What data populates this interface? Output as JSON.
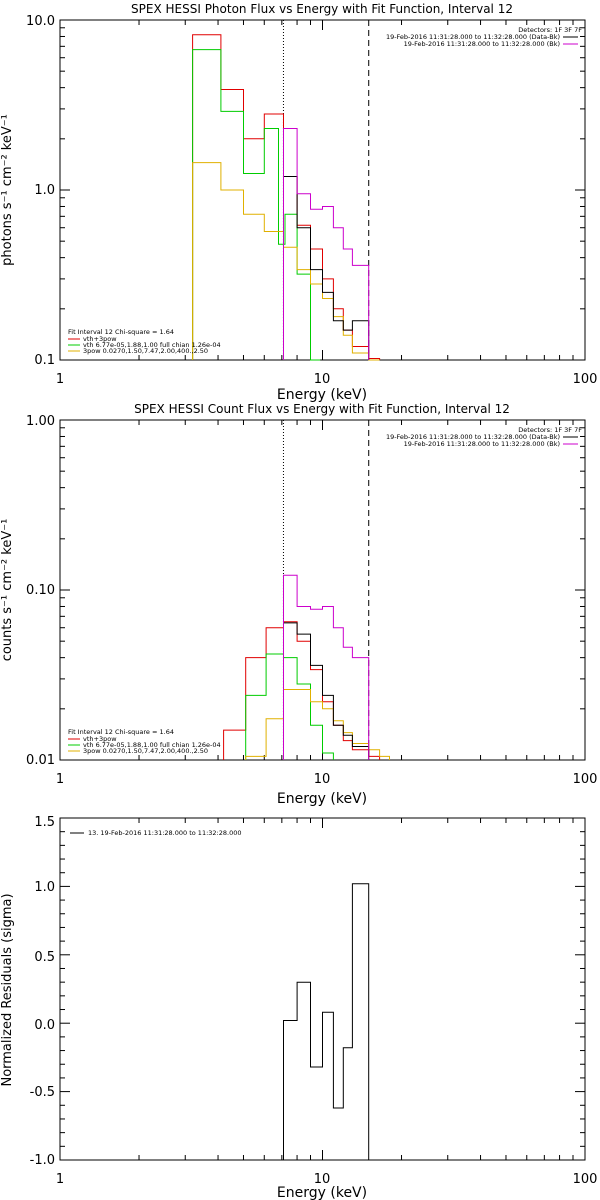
{
  "chart_data": [
    {
      "type": "line",
      "title": "SPEX HESSI Photon Flux vs Energy with Fit Function, Interval 12",
      "xlabel": "Energy (keV)",
      "ylabel": "photons s⁻¹ cm⁻² keV⁻¹",
      "xscale": "log",
      "yscale": "log",
      "xlim": [
        1,
        100
      ],
      "ylim": [
        0.1,
        10
      ],
      "x_ticks": [
        "1",
        "10",
        "100"
      ],
      "y_ticks": [
        "0.1",
        "1.0",
        "10.0"
      ],
      "vlines": [
        {
          "x": 7.1,
          "style": "dotted"
        },
        {
          "x": 15.0,
          "style": "dashed"
        }
      ],
      "legend_top_right": {
        "header": "Detectors: 1F 3F 7F",
        "entries": [
          {
            "label": "19-Feb-2016 11:31:28.000 to 11:32:28.000 (Data-Bk)",
            "color": "#000000"
          },
          {
            "label": "19-Feb-2016 11:31:28.000 to 11:32:28.000 (Bk)",
            "color": "#cc00cc"
          }
        ]
      },
      "legend_bottom_left": {
        "header": "Fit Interval 12   Chi-square = 1.64",
        "entries": [
          {
            "label": "vth+3pow",
            "color": "#e00000"
          },
          {
            "label": "vth 6.77e-05,1.88,1.00  full chian 1.26e-04",
            "color": "#00cc00"
          },
          {
            "label": "3pow 0.0270,1.50,7.47,2.00,400.,2.50",
            "color": "#e0b000"
          }
        ]
      },
      "series": [
        {
          "color": "#e00000",
          "bins": [
            [
              3.2,
              4.1,
              8.2
            ],
            [
              4.1,
              5.0,
              3.9
            ],
            [
              5.0,
              6.0,
              2.0
            ],
            [
              6.0,
              7.1,
              2.8
            ],
            [
              7.1,
              8.0,
              1.2
            ],
            [
              8.0,
              9.0,
              0.62
            ],
            [
              9.0,
              10.0,
              0.45
            ],
            [
              10.0,
              11.0,
              0.3
            ],
            [
              11.0,
              12.0,
              0.2
            ],
            [
              12.0,
              13.0,
              0.15
            ],
            [
              13.0,
              15.0,
              0.12
            ],
            [
              15.0,
              16.5,
              0.102
            ]
          ]
        },
        {
          "color": "#00cc00",
          "bins": [
            [
              3.2,
              4.1,
              6.7
            ],
            [
              4.1,
              5.0,
              2.9
            ],
            [
              5.0,
              6.0,
              1.25
            ],
            [
              6.0,
              6.8,
              2.3
            ],
            [
              6.8,
              7.2,
              0.48
            ],
            [
              7.2,
              8.0,
              0.72
            ],
            [
              8.0,
              9.0,
              0.32
            ],
            [
              9.0,
              9.8,
              0.1
            ]
          ]
        },
        {
          "color": "#e0b000",
          "bins": [
            [
              3.2,
              4.1,
              1.45
            ],
            [
              4.1,
              5.0,
              1.0
            ],
            [
              5.0,
              6.0,
              0.72
            ],
            [
              6.0,
              7.1,
              0.57
            ],
            [
              7.1,
              8.0,
              0.46
            ],
            [
              8.0,
              9.0,
              0.34
            ],
            [
              9.0,
              10.0,
              0.28
            ],
            [
              10.0,
              11.0,
              0.23
            ],
            [
              11.0,
              12.0,
              0.18
            ],
            [
              12.0,
              13.0,
              0.14
            ],
            [
              13.0,
              15.0,
              0.11
            ],
            [
              15.0,
              16.5,
              0.1
            ]
          ]
        },
        {
          "color": "#000000",
          "bins": [
            [
              7.1,
              8.0,
              1.2
            ],
            [
              8.0,
              9.0,
              0.6
            ],
            [
              9.0,
              10.0,
              0.34
            ],
            [
              10.0,
              11.0,
              0.25
            ],
            [
              11.0,
              12.0,
              0.17
            ],
            [
              12.0,
              13.0,
              0.15
            ],
            [
              13.0,
              15.0,
              0.17
            ]
          ]
        },
        {
          "color": "#cc00cc",
          "bins": [
            [
              7.1,
              8.0,
              2.3
            ],
            [
              8.0,
              9.0,
              0.95
            ],
            [
              9.0,
              10.0,
              0.77
            ],
            [
              10.0,
              11.0,
              0.8
            ],
            [
              11.0,
              12.0,
              0.6
            ],
            [
              12.0,
              13.0,
              0.45
            ],
            [
              13.0,
              15.0,
              0.36
            ]
          ]
        }
      ]
    },
    {
      "type": "line",
      "title": "SPEX HESSI Count Flux vs Energy with Fit Function, Interval 12",
      "xlabel": "Energy (keV)",
      "ylabel": "counts s⁻¹ cm⁻² keV⁻¹",
      "xscale": "log",
      "yscale": "log",
      "xlim": [
        1,
        100
      ],
      "ylim": [
        0.01,
        1
      ],
      "x_ticks": [
        "1",
        "10",
        "100"
      ],
      "y_ticks": [
        "0.01",
        "0.10",
        "1.00"
      ],
      "vlines": [
        {
          "x": 7.1,
          "style": "dotted"
        },
        {
          "x": 15.0,
          "style": "dashed"
        }
      ],
      "legend_top_right": {
        "header": "Detectors: 1F 3F 7F",
        "entries": [
          {
            "label": "19-Feb-2016 11:31:28.000 to 11:32:28.000 (Data-Bk)",
            "color": "#000000"
          },
          {
            "label": "19-Feb-2016 11:31:28.000 to 11:32:28.000 (Bk)",
            "color": "#cc00cc"
          }
        ]
      },
      "legend_bottom_left": {
        "header": "Fit Interval 12   Chi-square = 1.64",
        "entries": [
          {
            "label": "vth+3pow",
            "color": "#e00000"
          },
          {
            "label": "vth 6.77e-05,1.88,1.00  full chian 1.26e-04",
            "color": "#00cc00"
          },
          {
            "label": "3pow 0.0270,1.50,7.47,2.00,400.,2.50",
            "color": "#e0b000"
          }
        ]
      },
      "series": [
        {
          "color": "#e00000",
          "bins": [
            [
              4.2,
              5.1,
              0.015
            ],
            [
              5.1,
              6.1,
              0.04
            ],
            [
              6.1,
              7.1,
              0.06
            ],
            [
              7.1,
              8.0,
              0.065
            ],
            [
              8.0,
              9.0,
              0.05
            ],
            [
              9.0,
              10.0,
              0.034
            ],
            [
              10.0,
              11.0,
              0.022
            ],
            [
              11.0,
              12.0,
              0.016
            ],
            [
              12.0,
              13.0,
              0.013
            ],
            [
              13.0,
              15.0,
              0.0115
            ],
            [
              15.0,
              16.5,
              0.0105
            ]
          ]
        },
        {
          "color": "#00cc00",
          "bins": [
            [
              5.1,
              6.1,
              0.024
            ],
            [
              6.1,
              7.1,
              0.042
            ],
            [
              7.1,
              8.0,
              0.04
            ],
            [
              8.0,
              9.0,
              0.028
            ],
            [
              9.0,
              10.0,
              0.016
            ],
            [
              10.0,
              11.0,
              0.011
            ]
          ]
        },
        {
          "color": "#e0b000",
          "bins": [
            [
              5.1,
              6.1,
              0.0105
            ],
            [
              6.1,
              7.1,
              0.0175
            ],
            [
              7.1,
              8.0,
              0.026
            ],
            [
              8.0,
              9.0,
              0.026
            ],
            [
              9.0,
              10.0,
              0.022
            ],
            [
              10.0,
              11.0,
              0.02
            ],
            [
              11.0,
              12.0,
              0.017
            ],
            [
              12.0,
              13.0,
              0.0145
            ],
            [
              13.0,
              15.0,
              0.0125
            ],
            [
              15.0,
              16.5,
              0.0115
            ],
            [
              16.5,
              18.0,
              0.0105
            ]
          ]
        },
        {
          "color": "#000000",
          "bins": [
            [
              7.1,
              8.0,
              0.064
            ],
            [
              8.0,
              9.0,
              0.055
            ],
            [
              9.0,
              10.0,
              0.036
            ],
            [
              10.0,
              11.0,
              0.024
            ],
            [
              11.0,
              12.0,
              0.016
            ],
            [
              12.0,
              13.0,
              0.014
            ],
            [
              13.0,
              15.0,
              0.012
            ]
          ]
        },
        {
          "color": "#cc00cc",
          "bins": [
            [
              7.1,
              8.0,
              0.122
            ],
            [
              8.0,
              9.0,
              0.08
            ],
            [
              9.0,
              10.0,
              0.077
            ],
            [
              10.0,
              11.0,
              0.08
            ],
            [
              11.0,
              12.0,
              0.06
            ],
            [
              12.0,
              13.0,
              0.046
            ],
            [
              13.0,
              15.0,
              0.04
            ]
          ]
        }
      ]
    },
    {
      "type": "line",
      "title": "",
      "xlabel": "Energy (keV)",
      "ylabel": "Normalized Residuals (sigma)",
      "xscale": "log",
      "yscale": "linear",
      "xlim": [
        1,
        100
      ],
      "ylim": [
        -1.0,
        1.5
      ],
      "x_ticks": [
        "1",
        "10",
        "100"
      ],
      "y_ticks": [
        "-1.0",
        "-0.5",
        "0.0",
        "0.5",
        "1.0",
        "1.5"
      ],
      "legend_top_left": {
        "entries": [
          {
            "label": "13. 19-Feb-2016 11:31:28.000 to 11:32:28.000",
            "color": "#000000"
          }
        ]
      },
      "series": [
        {
          "color": "#000000",
          "bins": [
            [
              7.1,
              8.0,
              0.02
            ],
            [
              8.0,
              9.0,
              0.3
            ],
            [
              9.0,
              10.0,
              -0.32
            ],
            [
              10.0,
              11.0,
              0.08
            ],
            [
              11.0,
              12.0,
              -0.62
            ],
            [
              12.0,
              13.0,
              -0.18
            ],
            [
              13.0,
              15.0,
              1.02
            ]
          ]
        }
      ]
    }
  ]
}
